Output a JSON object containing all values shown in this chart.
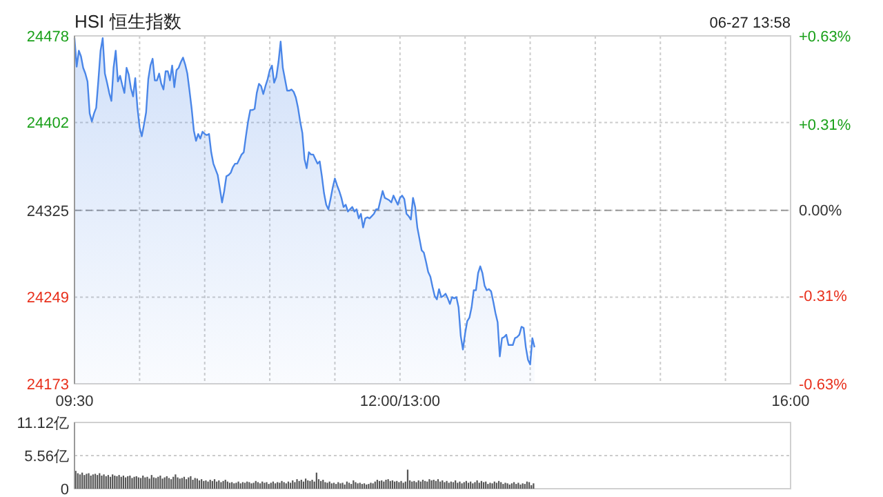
{
  "chart_data": [
    {
      "type": "area",
      "title": "HSI 恒生指数",
      "annotations": [
        "06-27 13:58"
      ],
      "categories": [
        "09:30",
        null,
        null,
        null,
        null,
        null,
        null,
        null,
        null,
        null,
        null,
        null,
        null,
        null,
        null,
        null,
        null,
        null,
        null,
        null,
        null,
        null,
        null,
        null,
        null,
        null,
        null,
        null,
        null,
        null,
        null,
        null,
        null,
        null,
        null,
        null,
        null,
        null,
        null,
        null,
        null,
        null,
        null,
        null,
        null,
        null,
        null,
        null,
        null,
        null,
        null,
        null,
        null,
        null,
        null,
        null,
        null,
        null,
        null,
        null,
        null,
        null,
        null,
        null,
        null,
        null,
        null,
        null,
        null,
        null,
        null,
        null,
        null,
        null,
        null,
        null,
        null,
        null,
        null,
        null,
        null,
        null,
        null,
        null,
        null,
        null,
        null,
        null,
        null,
        null,
        null,
        null,
        null,
        null,
        null,
        null,
        null,
        null,
        null,
        null,
        null,
        null,
        null,
        null,
        null,
        null,
        null,
        null,
        null,
        null,
        null,
        null,
        null,
        null,
        null,
        null,
        null,
        null,
        null,
        null,
        null,
        null,
        null,
        null,
        null,
        null,
        null,
        null,
        null,
        null,
        null,
        null,
        null,
        null,
        null,
        null,
        null,
        null,
        null,
        null,
        null,
        null,
        null,
        null,
        null,
        null,
        null,
        null,
        null,
        null,
        "12:00/13:00",
        null,
        null,
        null,
        null,
        null,
        null,
        null,
        null,
        null,
        null,
        null,
        null,
        null,
        null,
        null,
        null,
        null,
        null,
        null,
        null,
        null,
        null,
        null,
        null,
        null,
        null,
        null,
        null,
        null,
        null,
        null,
        null,
        null,
        null,
        null,
        null,
        null,
        null,
        null,
        null,
        null,
        null,
        null,
        null,
        null,
        null,
        null,
        null,
        null,
        null,
        null,
        null,
        null,
        null,
        null,
        null,
        null,
        null,
        null,
        null,
        null,
        null,
        null,
        null,
        null,
        null,
        null,
        null,
        null,
        null,
        null,
        null,
        null,
        null,
        null,
        null,
        null,
        null,
        null,
        null,
        null,
        null,
        null,
        null,
        null,
        null,
        null,
        null,
        null,
        null,
        null,
        null,
        null,
        null,
        null,
        null,
        null,
        null,
        null,
        null,
        null,
        null,
        null,
        null,
        null,
        null,
        null,
        null,
        null,
        null,
        null,
        null,
        null,
        null,
        null,
        null,
        null,
        null,
        null,
        null,
        null,
        null,
        null,
        null,
        null,
        null,
        null,
        null,
        null,
        null,
        null,
        null,
        null,
        null,
        null,
        null,
        null,
        null,
        null,
        null,
        null,
        null,
        null,
        null,
        null,
        null,
        null,
        null,
        null,
        null,
        null,
        null,
        null,
        null,
        null,
        null,
        null,
        null,
        null,
        null,
        null,
        null,
        null,
        null,
        null,
        null,
        null,
        null,
        null,
        null,
        null,
        null,
        null,
        null,
        null,
        null,
        null,
        null,
        null,
        "16:00"
      ],
      "ylim": [
        24173,
        24478
      ],
      "yticks": [
        24173,
        24249,
        24325,
        24402,
        24478
      ],
      "y2lim": [
        -0.63,
        0.63
      ],
      "y2ticks": [
        {
          "value": -0.63,
          "label": "-0.63%"
        },
        {
          "value": -0.31,
          "label": "-0.31%"
        },
        {
          "value": 0,
          "label": "0.00%"
        },
        {
          "value": 0.31,
          "label": "+0.31%"
        },
        {
          "value": 0.63,
          "label": "+0.63%"
        }
      ],
      "grid": true,
      "ref_lines": [
        {
          "axis": "y",
          "value": 24325,
          "color": "#999999",
          "line_style": "dashed"
        }
      ],
      "series": [
        {
          "color": "#4a86e8",
          "values": [
            24476,
            24451,
            24465,
            24460,
            24450,
            24445,
            24438,
            24410,
            24403,
            24410,
            24415,
            24439,
            24465,
            24476,
            24445,
            24437,
            24428,
            24421,
            24450,
            24465,
            24438,
            24443,
            24435,
            24428,
            24450,
            24444,
            24432,
            24425,
            24441,
            24415,
            24398,
            24390,
            24400,
            24411,
            24440,
            24452,
            24458,
            24439,
            24439,
            24445,
            24436,
            24431,
            24447,
            24447,
            24439,
            24452,
            24433,
            24448,
            24450,
            24455,
            24459,
            24453,
            24445,
            24430,
            24414,
            24395,
            24386,
            24392,
            24388,
            24394,
            24392,
            24391,
            24392,
            24376,
            24366,
            24361,
            24356,
            24344,
            24332,
            24342,
            24355,
            24356,
            24358,
            24363,
            24366,
            24366,
            24370,
            24374,
            24376,
            24390,
            24403,
            24413,
            24413,
            24414,
            24428,
            24436,
            24434,
            24427,
            24434,
            24440,
            24448,
            24452,
            24437,
            24442,
            24455,
            24473,
            24450,
            24440,
            24430,
            24430,
            24431,
            24429,
            24424,
            24415,
            24403,
            24393,
            24370,
            24362,
            24376,
            24374,
            24374,
            24370,
            24366,
            24368,
            24355,
            24340,
            24330,
            24326,
            24335,
            24345,
            24353,
            24347,
            24342,
            24336,
            24328,
            24330,
            24324,
            24326,
            24328,
            24324,
            24326,
            24318,
            24322,
            24310,
            24318,
            24319,
            24318,
            24320,
            24322,
            24326,
            24326,
            24334,
            24342,
            24336,
            24335,
            24334,
            24332,
            24338,
            24334,
            24330,
            24336,
            24338,
            24335,
            24322,
            24320,
            24317,
            24336,
            24328,
            24310,
            24300,
            24290,
            24288,
            24280,
            24271,
            24267,
            24258,
            24250,
            24247,
            24256,
            24249,
            24250,
            24252,
            24248,
            24243,
            24249,
            24248,
            24249,
            24240,
            24215,
            24203,
            24217,
            24228,
            24231,
            24240,
            24255,
            24255,
            24270,
            24276,
            24270,
            24259,
            24255,
            24256,
            24254,
            24245,
            24235,
            24227,
            24197,
            24213,
            24214,
            24216,
            24207,
            24207,
            24207,
            24213,
            24214,
            24216,
            24223,
            24222,
            24205,
            24194,
            24190,
            24213,
            24205,
            null,
            null,
            null,
            null,
            null,
            null,
            null,
            null,
            null,
            null,
            null,
            null,
            null,
            null,
            null,
            null,
            null,
            null,
            null,
            null,
            null,
            null,
            null,
            null,
            null,
            null,
            null,
            null,
            null,
            null,
            null,
            null,
            null,
            null,
            null,
            null,
            null,
            null,
            null,
            null,
            null,
            null,
            null,
            null,
            null,
            null,
            null,
            null,
            null,
            null,
            null,
            null,
            null,
            null,
            null,
            null,
            null,
            null,
            null,
            null,
            null,
            null,
            null,
            null,
            null,
            null,
            null,
            null,
            null,
            null,
            null,
            null,
            null,
            null,
            null,
            null,
            null,
            null,
            null,
            null,
            null,
            null,
            null,
            null,
            null,
            null,
            null,
            null,
            null,
            null,
            null,
            null,
            null,
            null,
            null,
            null,
            null,
            null,
            null,
            null,
            null,
            null,
            null,
            null,
            null,
            null,
            null,
            null,
            null,
            null,
            null,
            null,
            null,
            null,
            null,
            null,
            null,
            null
          ]
        }
      ]
    },
    {
      "type": "bar",
      "tick_labels": "y",
      "ylim": [
        0,
        11.12
      ],
      "yticks": [
        0,
        {
          "value": 5.56,
          "label": "5.56亿"
        },
        {
          "value": 11.12,
          "label": "11.12亿"
        }
      ],
      "grid": "y",
      "series": [
        {
          "color": "#555555",
          "values": [
            3.0,
            2.6,
            2.4,
            2.7,
            2.3,
            2.5,
            2.6,
            2.2,
            2.4,
            2.5,
            2.3,
            2.6,
            2.2,
            2.4,
            2.1,
            2.3,
            2.0,
            2.4,
            2.2,
            2.1,
            2.3,
            2.0,
            2.2,
            1.9,
            2.1,
            2.2,
            1.8,
            2.0,
            2.1,
            1.9,
            1.8,
            2.2,
            1.9,
            2.0,
            1.7,
            2.3,
            1.9,
            1.8,
            2.0,
            2.2,
            1.7,
            1.9,
            2.1,
            1.8,
            1.6,
            2.0,
            2.4,
            1.9,
            1.7,
            1.8,
            2.0,
            1.6,
            1.9,
            2.1,
            1.5,
            1.8,
            1.7,
            1.4,
            1.6,
            1.3,
            1.4,
            1.2,
            1.5,
            1.3,
            1.6,
            1.2,
            1.4,
            1.1,
            1.3,
            1.5,
            1.2,
            1.0,
            1.1,
            0.9,
            1.0,
            1.2,
            0.9,
            1.1,
            1.0,
            1.2,
            1.1,
            0.9,
            1.0,
            1.3,
            1.1,
            0.9,
            1.2,
            1.0,
            1.1,
            0.8,
            1.0,
            1.2,
            0.9,
            1.1,
            1.0,
            1.3,
            1.1,
            0.9,
            1.2,
            1.0,
            1.4,
            1.1,
            1.6,
            1.3,
            1.5,
            1.2,
            1.7,
            1.4,
            1.3,
            1.5,
            1.2,
            2.7,
            1.6,
            1.3,
            1.5,
            1.1,
            1.0,
            1.2,
            0.9,
            1.0,
            0.8,
            1.1,
            0.9,
            1.0,
            0.7,
            1.2,
            1.0,
            0.8,
            1.4,
            1.1,
            0.9,
            1.0,
            0.8,
            0.9,
            0.7,
            0.8,
            1.0,
            0.9,
            1.2,
            1.5,
            1.3,
            1.4,
            1.2,
            1.5,
            1.6,
            1.3,
            1.4,
            1.2,
            1.3,
            1.1,
            1.3,
            1.0,
            1.2,
            3.2,
            1.4,
            1.2,
            1.3,
            1.1,
            1.4,
            1.2,
            1.5,
            1.3,
            1.2,
            1.6,
            1.4,
            1.5,
            1.3,
            1.6,
            1.2,
            1.4,
            1.1,
            1.3,
            1.0,
            1.2,
            1.1,
            1.4,
            1.0,
            1.2,
            0.9,
            1.1,
            1.3,
            1.0,
            1.2,
            0.9,
            1.1,
            1.4,
            1.0,
            1.3,
            1.1,
            1.2,
            0.8,
            1.0,
            0.9,
            1.2,
            1.0,
            1.3,
            1.1,
            0.8,
            1.0,
            0.9,
            0.7,
            0.9,
            1.1,
            0.8,
            1.0,
            0.7,
            0.9,
            0.8,
            1.2,
            1.1,
            0.6,
            0.9,
            null,
            null,
            null,
            null,
            null,
            null,
            null,
            null,
            null,
            null,
            null,
            null,
            null,
            null,
            null,
            null,
            null,
            null,
            null,
            null,
            null,
            null,
            null,
            null,
            null,
            null,
            null,
            null,
            null,
            null,
            null,
            null,
            null,
            null,
            null,
            null,
            null,
            null,
            null,
            null,
            null,
            null,
            null,
            null,
            null,
            null,
            null,
            null,
            null,
            null,
            null,
            null,
            null,
            null,
            null,
            null,
            null,
            null,
            null,
            null,
            null,
            null,
            null,
            null,
            null,
            null,
            null,
            null,
            null,
            null,
            null,
            null,
            null,
            null,
            null,
            null,
            null,
            null,
            null,
            null,
            null,
            null,
            null,
            null,
            null,
            null,
            null,
            null,
            null,
            null,
            null,
            null,
            null,
            null,
            null,
            null,
            null,
            null,
            null,
            null,
            null,
            null,
            null,
            null,
            null,
            null,
            null,
            null,
            null,
            null,
            null,
            null,
            null,
            null,
            null,
            null,
            null,
            null,
            null
          ]
        }
      ]
    }
  ]
}
